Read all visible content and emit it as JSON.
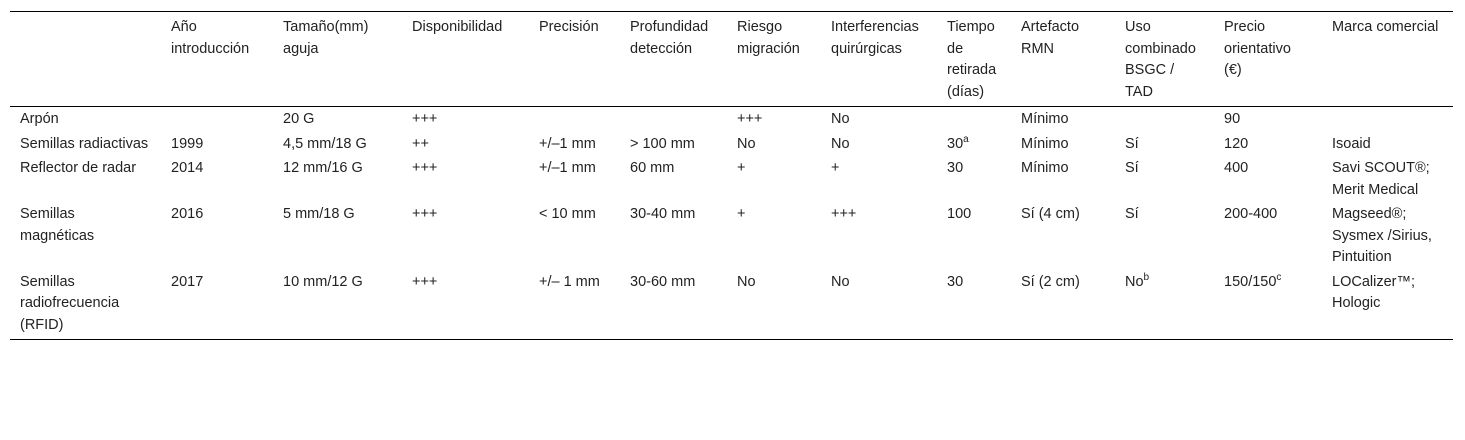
{
  "table": {
    "header": [
      null,
      "Año introducción",
      "Tamaño(mm) aguja",
      "Disponibilidad",
      "Precisión",
      "Profundidad detección",
      "Riesgo migración",
      "Interferencias quirúrgicas",
      "Tiempo de retirada (días)",
      "Artefacto RMN",
      "Uso combinado BSGC / TAD",
      "Precio orientativo (€)",
      "Marca comercial"
    ],
    "rows": [
      [
        "Arpón",
        null,
        "20 G",
        "+++",
        null,
        null,
        "+++",
        "No",
        null,
        "Mínimo",
        null,
        "90",
        null
      ],
      [
        "Semillas radiactivas",
        "1999",
        "4,5 mm/18 G",
        "++",
        "+/–1 mm",
        "> 100 mm",
        "No",
        "No",
        {
          "text": "30",
          "sup": "a"
        },
        "Mínimo",
        "Sí",
        "120",
        "Isoaid"
      ],
      [
        "Reflector de radar",
        "2014",
        "12 mm/16 G",
        "+++",
        "+/–1 mm",
        "60 mm",
        "+",
        "+",
        "30",
        "Mínimo",
        "Sí",
        "400",
        "Savi SCOUT®; Merit Medical"
      ],
      [
        "Semillas magnéticas",
        "2016",
        "5 mm/18 G",
        "+++",
        "< 10 mm",
        "30-40 mm",
        "+",
        "+++",
        "100",
        "Sí (4 cm)",
        "Sí",
        "200-400",
        "Magseed®; Sysmex /Sirius, Pintuition"
      ],
      [
        "Semillas radiofrecuencia (RFID)",
        "2017",
        "10 mm/12 G",
        "+++",
        "+/– 1 mm",
        "30-60 mm",
        "No",
        "No",
        "30",
        "Sí (2 cm)",
        {
          "text": "No",
          "sup": "b"
        },
        {
          "text": "150/150",
          "sup": "c"
        },
        "LOCalizer™; Hologic"
      ]
    ]
  }
}
